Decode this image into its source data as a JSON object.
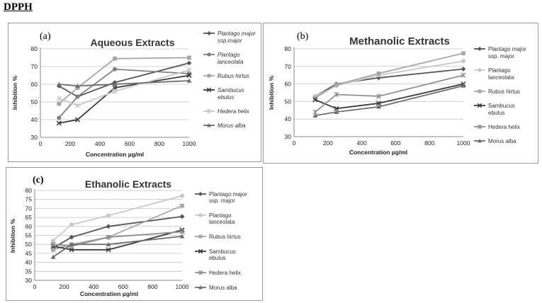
{
  "page": {
    "title": "DPPH"
  },
  "chart_data": [
    {
      "id": "aqueous",
      "panel_label": "(a)",
      "type": "line",
      "title": "Aqueous Extracts",
      "xlabel": "Concentration µg/ml",
      "ylabel": "Inhibition %",
      "xlim": [
        0,
        1000
      ],
      "ylim": [
        30,
        80
      ],
      "xticks": [
        "0",
        "200",
        "400",
        "600",
        "800",
        "1000"
      ],
      "yticks": [
        "30",
        "40",
        "50",
        "60",
        "70",
        "80"
      ],
      "grid": true,
      "legend": "right",
      "x": [
        125,
        250,
        500,
        1000
      ],
      "series": [
        {
          "name": "Plantago major ssp.major",
          "values": [
            59,
            53,
            61,
            72
          ],
          "color": "#555555",
          "marker": "diamond"
        },
        {
          "name": "Plantago lanceolata",
          "values": [
            41,
            53,
            68.5,
            66
          ],
          "color": "#808080",
          "marker": "circle"
        },
        {
          "name": "Rubus hirtus",
          "values": [
            49,
            58,
            74.5,
            75
          ],
          "color": "#a6a6a6",
          "marker": "square"
        },
        {
          "name": "Sambucus ebulus",
          "values": [
            38,
            40,
            58,
            65
          ],
          "color": "#3a3a3a",
          "marker": "x"
        },
        {
          "name": "Hedera helix",
          "values": [
            52,
            48,
            56,
            68
          ],
          "color": "#c8c8c8",
          "marker": "star"
        },
        {
          "name": "Morus alba",
          "values": [
            60,
            59,
            60,
            62
          ],
          "color": "#6e6e6e",
          "marker": "triangle"
        }
      ]
    },
    {
      "id": "methanolic",
      "panel_label": "(b)",
      "type": "line",
      "title": "Methanolic Extracts",
      "xlabel": "Concentration µg/ml",
      "ylabel": "Inhibition %",
      "xlim": [
        0,
        1000
      ],
      "ylim": [
        30,
        80
      ],
      "xticks": [
        "0",
        "200",
        "400",
        "600",
        "800",
        "1000"
      ],
      "yticks": [
        "30",
        "40",
        "50",
        "60",
        "70",
        "80"
      ],
      "grid": true,
      "legend": "right",
      "x": [
        125,
        250,
        500,
        1000
      ],
      "series": [
        {
          "name": "Plantago major ssp. major",
          "values": [
            53,
            60,
            63.5,
            68.5
          ],
          "color": "#555555",
          "marker": "diamond"
        },
        {
          "name": "Plantago lanceolata",
          "values": [
            53,
            59,
            65,
            73
          ],
          "color": "#c8c8c8",
          "marker": "circle"
        },
        {
          "name": "Rubus hirtus",
          "values": [
            52,
            59.5,
            66,
            77.5
          ],
          "color": "#a6a6a6",
          "marker": "square"
        },
        {
          "name": "Sambucus ebulus",
          "values": [
            51,
            46,
            49,
            60
          ],
          "color": "#3a3a3a",
          "marker": "x"
        },
        {
          "name": "Hedera helix",
          "values": [
            44,
            54,
            53,
            65
          ],
          "color": "#909090",
          "marker": "star"
        },
        {
          "name": "Morus alba",
          "values": [
            42,
            44,
            47,
            59
          ],
          "color": "#6e6e6e",
          "marker": "triangle"
        }
      ]
    },
    {
      "id": "ethanolic",
      "panel_label": "(c)",
      "type": "line",
      "title": "Ethanolic Extracts",
      "xlabel": "Concentration µg/ml",
      "ylabel": "Inhibition %",
      "xlim": [
        0,
        1000
      ],
      "ylim": [
        30,
        80
      ],
      "xticks": [
        "0",
        "200",
        "400",
        "600",
        "800",
        "1000"
      ],
      "yticks": [
        "30",
        "35",
        "40",
        "45",
        "50",
        "55",
        "60",
        "65",
        "70",
        "75",
        "80"
      ],
      "grid": true,
      "legend": "right",
      "x": [
        125,
        250,
        500,
        1000
      ],
      "series": [
        {
          "name": "Plantago major ssp. major",
          "values": [
            48,
            54,
            60,
            65.5
          ],
          "color": "#555555",
          "marker": "diamond"
        },
        {
          "name": "Plantago lanceolata",
          "values": [
            52,
            61,
            66,
            77
          ],
          "color": "#c8c8c8",
          "marker": "circle"
        },
        {
          "name": "Rubus hirtus",
          "values": [
            47,
            50,
            54,
            71.5
          ],
          "color": "#a6a6a6",
          "marker": "square"
        },
        {
          "name": "Sambucus ebulus",
          "values": [
            49,
            47,
            47,
            58
          ],
          "color": "#3a3a3a",
          "marker": "x"
        },
        {
          "name": "Hedera helix",
          "values": [
            50,
            49,
            54,
            57
          ],
          "color": "#909090",
          "marker": "star"
        },
        {
          "name": "Morus alba",
          "values": [
            43,
            50,
            50,
            54.5
          ],
          "color": "#6e6e6e",
          "marker": "triangle"
        }
      ]
    }
  ]
}
